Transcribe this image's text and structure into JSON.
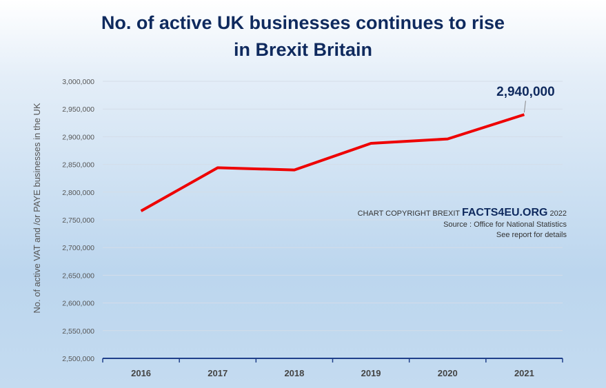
{
  "chart_data": {
    "type": "line",
    "title": "No. of active UK businesses continues to rise in Brexit Britain",
    "title_lines": [
      "No. of active UK businesses continues to rise",
      "in Brexit Britain"
    ],
    "xlabel": "",
    "ylabel": "No. of active VAT and /or PAYE businesses in the UK",
    "categories": [
      "2016",
      "2017",
      "2018",
      "2019",
      "2020",
      "2021"
    ],
    "values": [
      2766000,
      2844000,
      2840000,
      2888000,
      2896000,
      2940000
    ],
    "ylim": [
      2500000,
      3000000
    ],
    "ytick_step": 50000,
    "yticks": [
      "2,500,000",
      "2,550,000",
      "2,600,000",
      "2,650,000",
      "2,700,000",
      "2,750,000",
      "2,800,000",
      "2,850,000",
      "2,900,000",
      "2,950,000",
      "3,000,000"
    ],
    "grid": true,
    "legend": "none",
    "line_color": "#ee0000",
    "data_label": "2,940,000",
    "annotation": {
      "copyright_prefix": "CHART COPYRIGHT BREXIT",
      "brand": "FACTS4EU.ORG",
      "year": "2022",
      "source": "Source : Office for National Statistics",
      "details": "See report for details"
    }
  }
}
